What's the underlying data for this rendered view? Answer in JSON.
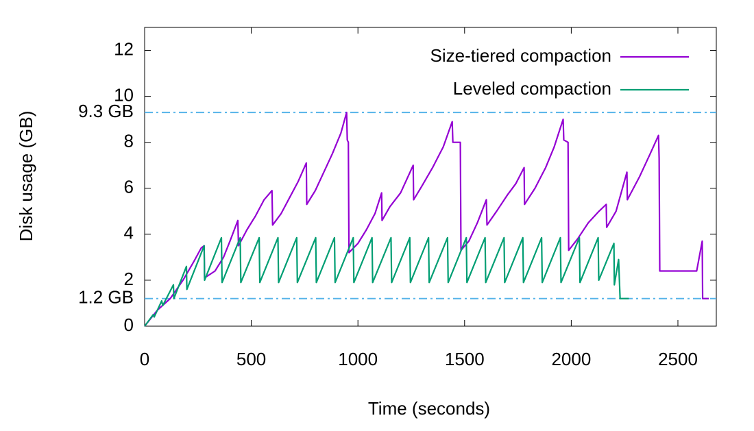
{
  "chart_data": {
    "type": "line",
    "x_label": "Time (seconds)",
    "y_label": "Disk usage (GB)",
    "xlim": [
      0,
      2680
    ],
    "ylim": [
      0,
      13
    ],
    "xticks": [
      0,
      500,
      1000,
      1500,
      2000,
      2500
    ],
    "yticks": [
      0,
      {
        "value": 1.2,
        "label": "1.2 GB"
      },
      2,
      4,
      6,
      8,
      {
        "value": 9.3,
        "label": "9.3 GB"
      },
      10,
      12
    ],
    "reference_line_color": "#56b4e9",
    "legend": "top-right",
    "series": [
      {
        "name": "Size-tiered compaction",
        "color": "#9400d3",
        "x": [
          0,
          60,
          120,
          180,
          230,
          265,
          279,
          281,
          330,
          370,
          400,
          437,
          440,
          480,
          520,
          560,
          597,
          600,
          640,
          680,
          720,
          758,
          760,
          800,
          840,
          880,
          920,
          947,
          950,
          955,
          958,
          1000,
          1040,
          1080,
          1111,
          1113,
          1150,
          1200,
          1259,
          1261,
          1300,
          1350,
          1400,
          1442,
          1445,
          1480,
          1483,
          1520,
          1560,
          1602,
          1605,
          1650,
          1700,
          1740,
          1779,
          1781,
          1830,
          1880,
          1920,
          1962,
          1965,
          1985,
          1988,
          2030,
          2080,
          2130,
          2164,
          2166,
          2210,
          2261,
          2263,
          2320,
          2370,
          2409,
          2412,
          2415,
          2588,
          2614,
          2616,
          2645
        ],
        "values": [
          0,
          0.7,
          1.2,
          2.0,
          2.8,
          3.4,
          3.5,
          2.1,
          2.4,
          3.0,
          3.7,
          4.6,
          3.5,
          4.2,
          4.8,
          5.5,
          5.9,
          4.4,
          4.9,
          5.6,
          6.3,
          7.1,
          5.3,
          5.9,
          6.7,
          7.5,
          8.4,
          9.3,
          8.1,
          8.0,
          3.2,
          3.6,
          4.2,
          4.9,
          5.8,
          4.6,
          5.2,
          5.8,
          7.0,
          5.5,
          6.1,
          6.9,
          7.8,
          8.9,
          8.0,
          8.0,
          3.3,
          3.7,
          4.5,
          5.5,
          4.4,
          5.0,
          5.7,
          6.2,
          6.9,
          5.3,
          6.0,
          6.9,
          7.8,
          9.0,
          8.1,
          8.0,
          3.3,
          3.8,
          4.5,
          5.0,
          5.3,
          4.3,
          5.0,
          6.7,
          5.5,
          6.5,
          7.5,
          8.3,
          7.3,
          2.4,
          2.4,
          3.7,
          1.2,
          1.2
        ]
      },
      {
        "name": "Leveled compaction",
        "color": "#009e73",
        "x": [
          0,
          40,
          45,
          80,
          85,
          135,
          137,
          196,
          198,
          279,
          281,
          360,
          363,
          448,
          451,
          537,
          540,
          625,
          628,
          713,
          716,
          802,
          805,
          890,
          893,
          978,
          981,
          1066,
          1069,
          1155,
          1158,
          1243,
          1246,
          1331,
          1334,
          1420,
          1423,
          1508,
          1511,
          1596,
          1599,
          1685,
          1688,
          1773,
          1776,
          1861,
          1864,
          1949,
          1952,
          2038,
          2041,
          2126,
          2129,
          2200,
          2202,
          2222,
          2229,
          2270
        ],
        "values": [
          0,
          0.5,
          0.4,
          1.1,
          0.9,
          1.8,
          1.2,
          2.6,
          1.6,
          3.5,
          2.0,
          3.85,
          1.9,
          3.85,
          1.9,
          3.85,
          1.9,
          3.85,
          1.9,
          3.85,
          1.9,
          3.85,
          1.9,
          3.85,
          1.9,
          3.85,
          1.9,
          3.85,
          1.9,
          3.85,
          1.9,
          3.85,
          1.9,
          3.85,
          1.9,
          3.85,
          1.9,
          3.85,
          1.9,
          3.85,
          1.9,
          3.85,
          1.9,
          3.85,
          1.9,
          3.85,
          1.9,
          3.85,
          1.9,
          3.85,
          1.9,
          3.85,
          2.0,
          3.6,
          1.8,
          2.9,
          1.2,
          1.2
        ]
      }
    ]
  }
}
